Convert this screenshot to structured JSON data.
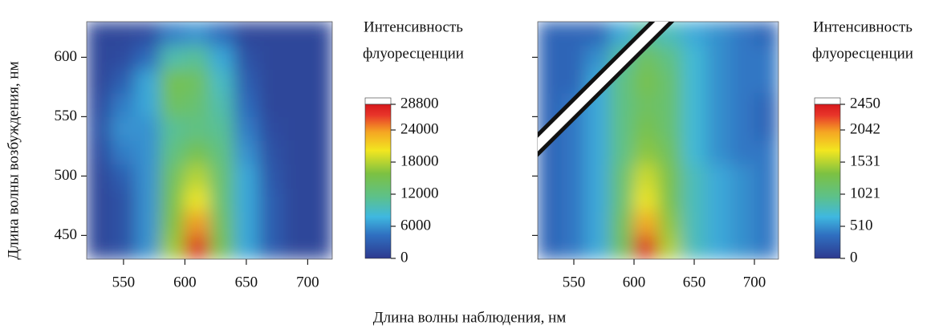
{
  "x_label": "Длина волны наблюдения, нм",
  "y_label": "Длина волны возбуждения, нм",
  "chart_data": [
    {
      "type": "heatmap",
      "x": [
        530,
        550,
        570,
        590,
        610,
        630,
        650,
        670,
        690,
        710
      ],
      "y": [
        440,
        460,
        480,
        500,
        520,
        540,
        560,
        580,
        600,
        620
      ],
      "z": [
        [
          1000,
          2000,
          6000,
          17000,
          28000,
          15000,
          7000,
          3000,
          1000,
          1000
        ],
        [
          1000,
          2000,
          6000,
          16000,
          24000,
          14000,
          7000,
          3000,
          1000,
          1000
        ],
        [
          1000,
          2000,
          6000,
          15000,
          20000,
          13000,
          7000,
          3000,
          1000,
          1000
        ],
        [
          1000,
          3000,
          6000,
          14000,
          18000,
          13000,
          7000,
          2500,
          1000,
          1000
        ],
        [
          1500,
          5000,
          6000,
          12000,
          15000,
          12000,
          6000,
          2000,
          1000,
          1000
        ],
        [
          2000,
          6000,
          6000,
          11000,
          12000,
          11000,
          5000,
          1500,
          1000,
          1000
        ],
        [
          1500,
          5000,
          7000,
          14000,
          13000,
          10000,
          4000,
          1000,
          1000,
          1000
        ],
        [
          1000,
          3000,
          7000,
          15000,
          14000,
          9000,
          3000,
          1000,
          1000,
          1000
        ],
        [
          1000,
          1500,
          4000,
          10000,
          11000,
          7000,
          2000,
          1000,
          1000,
          1000
        ],
        [
          1000,
          1000,
          1500,
          5000,
          6000,
          4000,
          1000,
          1000,
          1000,
          1000
        ]
      ],
      "xlim": [
        520,
        720
      ],
      "ylim": [
        430,
        630
      ],
      "xticks": [
        550,
        600,
        650,
        700
      ],
      "yticks": [
        450,
        500,
        550,
        600
      ],
      "colorbar": {
        "title": [
          "Интенсивность",
          "флуоресценции"
        ],
        "lim": [
          0,
          28800
        ],
        "ticks": [
          0,
          6000,
          12000,
          18000,
          24000,
          28800
        ]
      }
    },
    {
      "type": "heatmap",
      "x": [
        530,
        550,
        570,
        590,
        610,
        630,
        650,
        670,
        690,
        710
      ],
      "y": [
        440,
        460,
        480,
        500,
        520,
        540,
        560,
        580,
        600,
        620
      ],
      "z": [
        [
          300,
          400,
          600,
          1200,
          2400,
          1500,
          800,
          600,
          500,
          400
        ],
        [
          300,
          400,
          600,
          1200,
          2000,
          1400,
          800,
          600,
          500,
          400
        ],
        [
          300,
          400,
          600,
          1100,
          1700,
          1300,
          800,
          600,
          500,
          400
        ],
        [
          300,
          400,
          600,
          1100,
          1600,
          1300,
          800,
          600,
          500,
          400
        ],
        [
          300,
          400,
          600,
          1000,
          1400,
          1200,
          700,
          500,
          400,
          400
        ],
        [
          300,
          400,
          600,
          1000,
          1300,
          1100,
          700,
          500,
          400,
          300
        ],
        [
          300,
          400,
          600,
          1000,
          1200,
          1100,
          700,
          500,
          400,
          300
        ],
        [
          300,
          300,
          600,
          1000,
          1300,
          1100,
          700,
          500,
          400,
          400
        ],
        [
          300,
          300,
          500,
          900,
          1200,
          1000,
          700,
          500,
          400,
          400
        ],
        [
          300,
          300,
          300,
          600,
          900,
          800,
          600,
          500,
          400,
          300
        ]
      ],
      "xlim": [
        520,
        720
      ],
      "ylim": [
        430,
        630
      ],
      "xticks": [
        550,
        600,
        650,
        700
      ],
      "yticks": [
        450,
        500,
        550,
        600
      ],
      "colorbar": {
        "title": [
          "Интенсивность",
          "флуоресценции"
        ],
        "lim": [
          0,
          2450
        ],
        "ticks": [
          0,
          510,
          1021,
          1531,
          2042,
          2450
        ]
      }
    }
  ]
}
